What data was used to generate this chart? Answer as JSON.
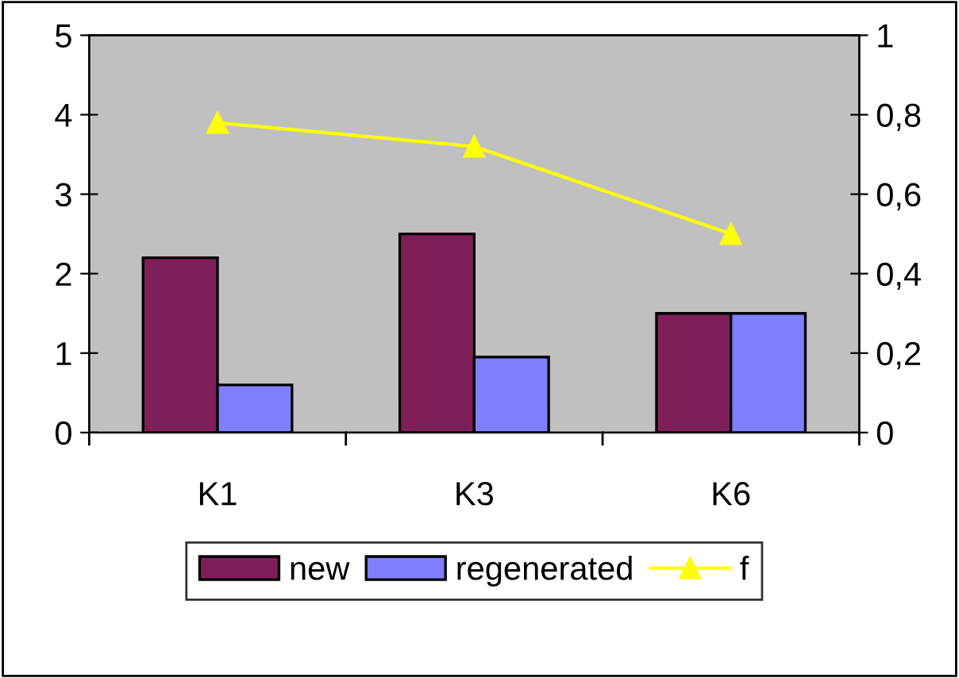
{
  "chart_data": {
    "type": "bar",
    "categories": [
      "K1",
      "K3",
      "K6"
    ],
    "series": [
      {
        "name": "new",
        "color": "#7f1f5a",
        "values": [
          2.2,
          2.5,
          1.5
        ]
      },
      {
        "name": "regenerated",
        "color": "#8080ff",
        "values": [
          0.6,
          0.95,
          1.5
        ]
      },
      {
        "name": "f",
        "type": "line",
        "axis": "y2",
        "color": "#ffff00",
        "marker": "triangle",
        "values": [
          0.78,
          0.72,
          0.5
        ]
      }
    ],
    "ylim": [
      0,
      5
    ],
    "yticks": [
      0,
      1,
      2,
      3,
      4,
      5
    ],
    "y2lim": [
      0,
      1
    ],
    "y2ticks": [
      0,
      {
        "value": 0.2,
        "label": "0,2"
      },
      {
        "value": 0.4,
        "label": "0,4"
      },
      {
        "value": 0.6,
        "label": "0,6"
      },
      {
        "value": 0.8,
        "label": "0,8"
      },
      1
    ],
    "grid": false,
    "legend": "bottom"
  }
}
